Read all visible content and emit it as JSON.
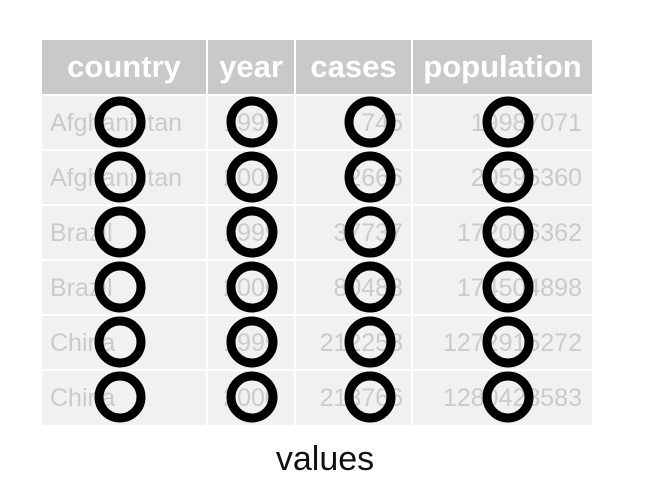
{
  "table": {
    "headers": [
      "country",
      "year",
      "cases",
      "population"
    ],
    "rows": [
      [
        "Afghanistan",
        "1999",
        "745",
        "19987071"
      ],
      [
        "Afghanistan",
        "2000",
        "2666",
        "20595360"
      ],
      [
        "Brazil",
        "1999",
        "37737",
        "172006362"
      ],
      [
        "Brazil",
        "2000",
        "80488",
        "174504898"
      ],
      [
        "China",
        "1999",
        "212258",
        "1272915272"
      ],
      [
        "China",
        "2000",
        "213766",
        "1280428583"
      ]
    ]
  },
  "caption": "values",
  "colors": {
    "header_bg": "#c9c9c9",
    "header_text": "#ffffff",
    "cell_bg": "#f1f1f1",
    "cell_text": "#cbcbcb",
    "marker": "#000000"
  },
  "marker_icon": "ring-icon"
}
